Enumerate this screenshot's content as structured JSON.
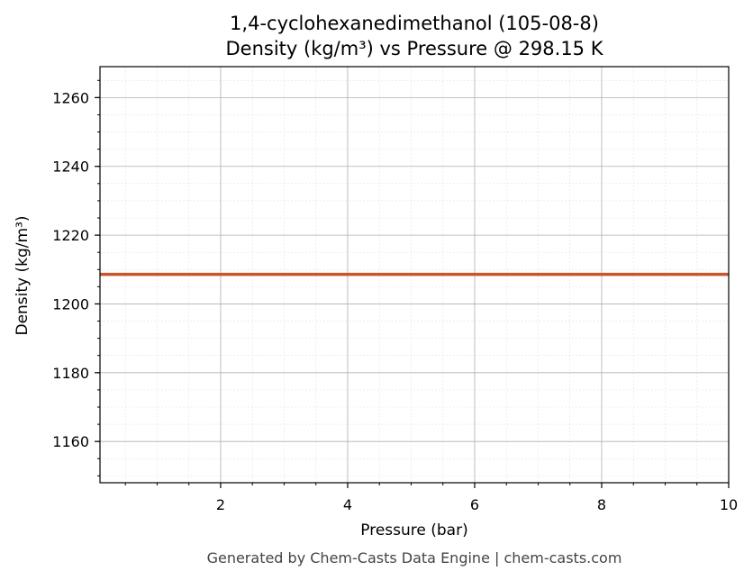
{
  "chart_data": {
    "type": "line",
    "title": "1,4-cyclohexanedimethanol (105-08-8)",
    "subtitle": "Density (kg/m³) vs Pressure @ 298.15 K",
    "xlabel": "Pressure (bar)",
    "ylabel": "Density (kg/m³)",
    "xlim": [
      0.1,
      10
    ],
    "ylim": [
      1148,
      1269
    ],
    "x_ticks": [
      2,
      4,
      6,
      8,
      10
    ],
    "y_ticks": [
      1160,
      1180,
      1200,
      1220,
      1240,
      1260
    ],
    "x_minor_step": 0.5,
    "y_minor_step": 5,
    "grid": true,
    "series": [
      {
        "color": "#c8552b",
        "x": [
          0.1,
          1,
          2,
          3,
          4,
          5,
          6,
          7,
          8,
          9,
          10
        ],
        "y": [
          1208.6,
          1208.6,
          1208.6,
          1208.6,
          1208.6,
          1208.6,
          1208.6,
          1208.6,
          1208.6,
          1208.6,
          1208.6
        ]
      }
    ]
  },
  "footer": "Generated by Chem-Casts Data Engine | chem-casts.com"
}
